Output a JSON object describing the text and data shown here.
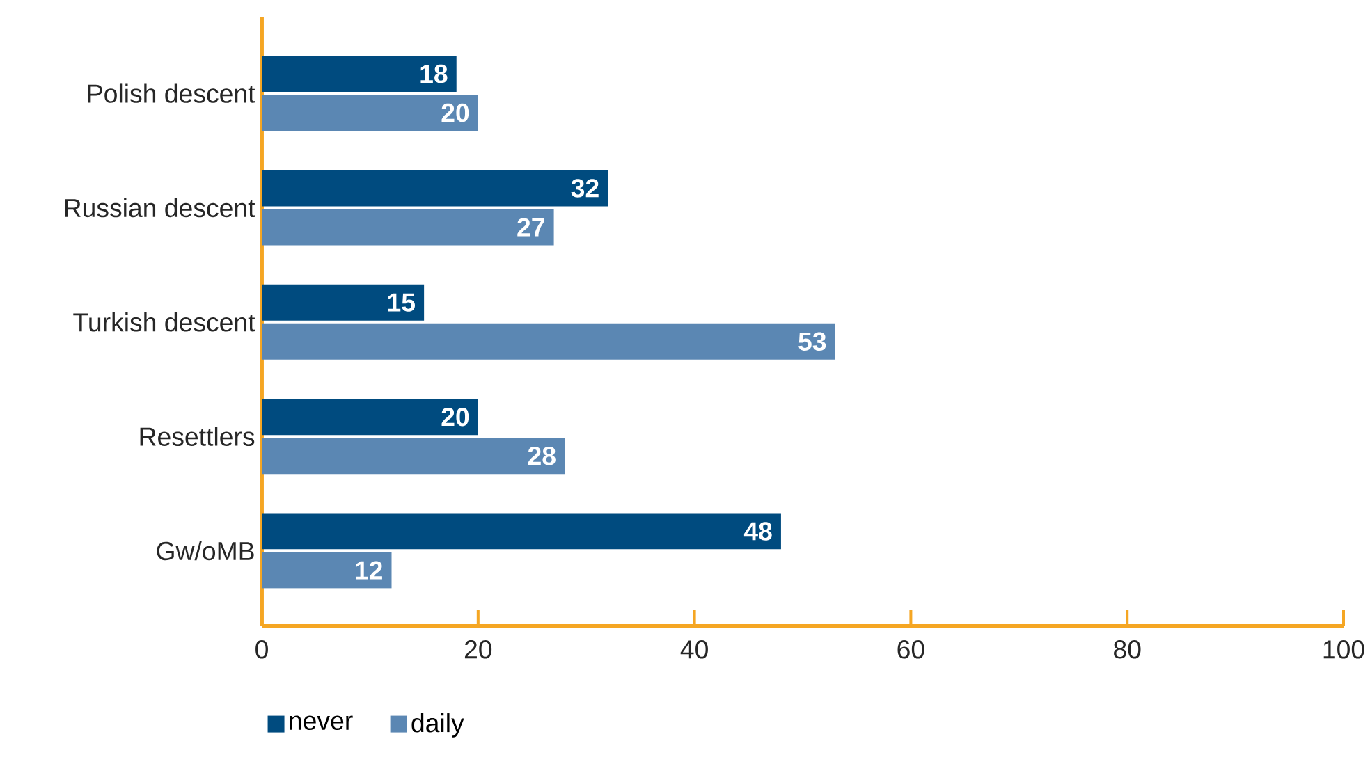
{
  "chart_data": {
    "type": "bar",
    "orientation": "horizontal",
    "categories": [
      "Polish descent",
      "Russian descent",
      "Turkish descent",
      "Resettlers",
      "Gw/oMB"
    ],
    "series": [
      {
        "name": "never",
        "color": "#004b7f",
        "values": [
          18,
          32,
          15,
          20,
          48
        ]
      },
      {
        "name": "daily",
        "color": "#5b87b3",
        "values": [
          20,
          27,
          53,
          28,
          12
        ]
      }
    ],
    "xlim": [
      0,
      100
    ],
    "xticks": [
      0,
      20,
      40,
      60,
      80,
      100
    ],
    "data_labels": true,
    "legend": "bottom",
    "grid": false
  }
}
